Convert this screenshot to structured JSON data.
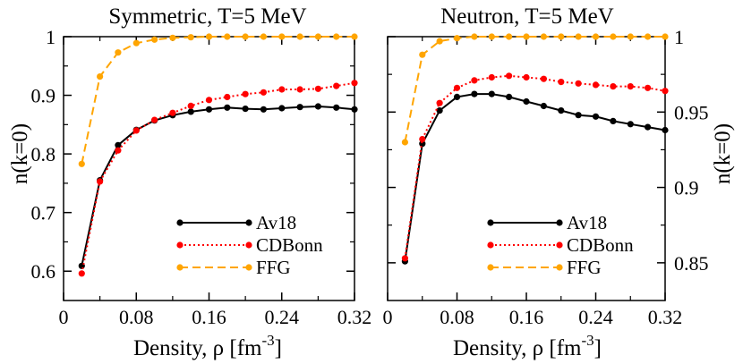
{
  "chart_data": [
    {
      "type": "line",
      "title": "Symmetric, T=5 MeV",
      "xlabel": "Density, ρ [fm",
      "xlabel_sup": "-3",
      "xlabel_end": "]",
      "ylabel": "n(k=0)",
      "xlim": [
        0,
        0.32
      ],
      "ylim": [
        0.55,
        1.0
      ],
      "xticks": [
        0,
        0.08,
        0.16,
        0.24,
        0.32
      ],
      "xtick_labels": [
        "0",
        "0.08",
        "0.16",
        "0.24",
        "0.32"
      ],
      "yticks": [
        0.6,
        0.7,
        0.8,
        0.9,
        1.0
      ],
      "ytick_labels": [
        "0.6",
        "0.7",
        "0.8",
        "0.9",
        "1"
      ],
      "yaxis_side": "left",
      "legend_position": "bottom-right",
      "series": [
        {
          "name": "Av18",
          "color": "#000000",
          "dash": "solid",
          "x": [
            0.02,
            0.04,
            0.06,
            0.08,
            0.1,
            0.12,
            0.14,
            0.16,
            0.18,
            0.2,
            0.22,
            0.24,
            0.26,
            0.28,
            0.3,
            0.32
          ],
          "y": [
            0.609,
            0.755,
            0.815,
            0.841,
            0.857,
            0.866,
            0.872,
            0.876,
            0.879,
            0.877,
            0.876,
            0.878,
            0.88,
            0.881,
            0.879,
            0.876
          ]
        },
        {
          "name": "CDBonn",
          "color": "#ff0000",
          "dash": "dotted",
          "x": [
            0.02,
            0.04,
            0.06,
            0.08,
            0.1,
            0.12,
            0.14,
            0.16,
            0.18,
            0.2,
            0.22,
            0.24,
            0.26,
            0.28,
            0.3,
            0.32
          ],
          "y": [
            0.596,
            0.753,
            0.806,
            0.84,
            0.858,
            0.87,
            0.882,
            0.892,
            0.897,
            0.902,
            0.905,
            0.91,
            0.91,
            0.911,
            0.916,
            0.921
          ]
        },
        {
          "name": "FFG",
          "color": "#ffa500",
          "dash": "dashed",
          "x": [
            0.02,
            0.04,
            0.06,
            0.08,
            0.1,
            0.12,
            0.14,
            0.16,
            0.18,
            0.2,
            0.22,
            0.24,
            0.26,
            0.28,
            0.3,
            0.32
          ],
          "y": [
            0.783,
            0.932,
            0.973,
            0.989,
            0.995,
            0.998,
            0.999,
            1.0,
            1.0,
            1.0,
            1.0,
            1.0,
            1.0,
            1.0,
            1.0,
            1.0
          ]
        }
      ]
    },
    {
      "type": "line",
      "title": "Neutron, T=5 MeV",
      "xlabel": "Density, ρ [fm",
      "xlabel_sup": "-3",
      "xlabel_end": "]",
      "ylabel": "n(k=0)",
      "xlim": [
        0,
        0.32
      ],
      "ylim": [
        0.825,
        1.0
      ],
      "xticks": [
        0,
        0.08,
        0.16,
        0.24,
        0.32
      ],
      "xtick_labels": [
        "0",
        "0.08",
        "0.16",
        "0.24",
        "0.32"
      ],
      "yticks": [
        0.85,
        0.9,
        0.95,
        1.0
      ],
      "ytick_labels": [
        "0.85",
        "0.9",
        "0.95",
        "1"
      ],
      "yaxis_side": "right",
      "legend_position": "bottom-right",
      "series": [
        {
          "name": "Av18",
          "color": "#000000",
          "dash": "solid",
          "x": [
            0.02,
            0.04,
            0.06,
            0.08,
            0.1,
            0.12,
            0.14,
            0.16,
            0.18,
            0.2,
            0.22,
            0.24,
            0.26,
            0.28,
            0.3,
            0.32
          ],
          "y": [
            0.851,
            0.929,
            0.951,
            0.96,
            0.962,
            0.962,
            0.96,
            0.957,
            0.954,
            0.951,
            0.948,
            0.947,
            0.944,
            0.942,
            0.94,
            0.938
          ]
        },
        {
          "name": "CDBonn",
          "color": "#ff0000",
          "dash": "dotted",
          "x": [
            0.02,
            0.04,
            0.06,
            0.08,
            0.1,
            0.12,
            0.14,
            0.16,
            0.18,
            0.2,
            0.22,
            0.24,
            0.26,
            0.28,
            0.3,
            0.32
          ],
          "y": [
            0.853,
            0.932,
            0.956,
            0.966,
            0.971,
            0.973,
            0.974,
            0.973,
            0.972,
            0.97,
            0.969,
            0.968,
            0.967,
            0.967,
            0.966,
            0.964
          ]
        },
        {
          "name": "FFG",
          "color": "#ffa500",
          "dash": "dashed",
          "x": [
            0.02,
            0.04,
            0.06,
            0.08,
            0.1,
            0.12,
            0.14,
            0.16,
            0.18,
            0.2,
            0.22,
            0.24,
            0.26,
            0.28,
            0.3,
            0.32
          ],
          "y": [
            0.93,
            0.988,
            0.997,
            0.999,
            1.0,
            1.0,
            1.0,
            1.0,
            1.0,
            1.0,
            1.0,
            1.0,
            1.0,
            1.0,
            1.0,
            1.0
          ]
        }
      ]
    }
  ]
}
